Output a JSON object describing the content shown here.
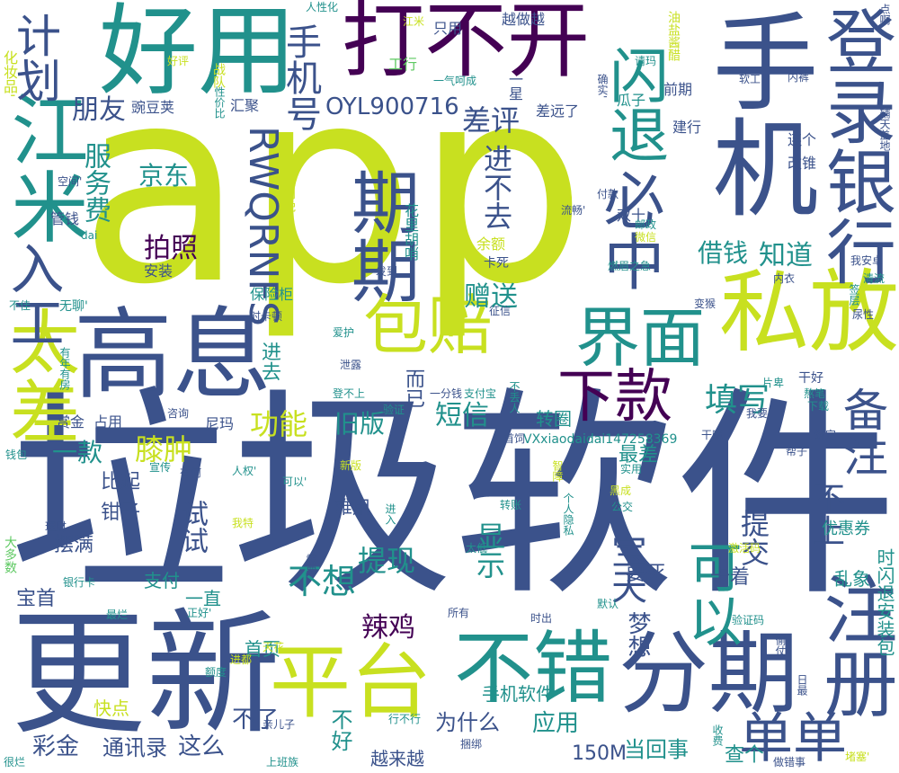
{
  "palette": {
    "deep_purple": "#440154",
    "indigo": "#3b528b",
    "teal": "#21918c",
    "green": "#5ec962",
    "lime": "#c8e020",
    "mid_blue": "#31688e",
    "sea": "#1f9e89"
  },
  "words": [
    {
      "t": "app",
      "c": "lime"
    },
    {
      "t": "垃圾软件",
      "c": "indigo"
    },
    {
      "t": "更新",
      "c": "indigo"
    },
    {
      "t": "打不开",
      "c": "deep_purple"
    },
    {
      "t": "手机",
      "c": "indigo"
    },
    {
      "t": "好用",
      "c": "teal"
    },
    {
      "t": "高息",
      "c": "indigo"
    },
    {
      "t": "私放",
      "c": "lime"
    },
    {
      "t": "平台",
      "c": "lime"
    },
    {
      "t": "不错",
      "c": "teal"
    },
    {
      "t": "分期",
      "c": "indigo"
    },
    {
      "t": "登录银行",
      "c": "indigo"
    },
    {
      "t": "江米",
      "c": "teal"
    },
    {
      "t": "期期",
      "c": "indigo"
    },
    {
      "t": "注册",
      "c": "indigo"
    },
    {
      "t": "包赔",
      "c": "lime"
    },
    {
      "t": "界面",
      "c": "teal"
    },
    {
      "t": "太差",
      "c": "lime"
    },
    {
      "t": "必中",
      "c": "indigo"
    },
    {
      "t": "闪退",
      "c": "teal"
    },
    {
      "t": "下款",
      "c": "deep_purple"
    },
    {
      "t": "入工",
      "c": "indigo"
    },
    {
      "t": "计划",
      "c": "indigo"
    },
    {
      "t": "手机号",
      "c": "indigo"
    },
    {
      "t": "RWQRNFS",
      "c": "indigo"
    },
    {
      "t": "OYL900716",
      "c": "indigo"
    },
    {
      "t": "可以",
      "c": "teal"
    },
    {
      "t": "备注",
      "c": "indigo"
    },
    {
      "t": "单单",
      "c": "indigo"
    },
    {
      "t": "宝天",
      "c": "indigo"
    },
    {
      "t": "填写",
      "c": "teal"
    },
    {
      "t": "功能",
      "c": "lime"
    },
    {
      "t": "旧版",
      "c": "teal"
    },
    {
      "t": "膝肿",
      "c": "lime"
    },
    {
      "t": "短信",
      "c": "teal"
    },
    {
      "t": "朋友",
      "c": "indigo"
    },
    {
      "t": "服务费",
      "c": "teal"
    },
    {
      "t": "差评",
      "c": "indigo"
    },
    {
      "t": "进不去",
      "c": "indigo"
    },
    {
      "t": "京东",
      "c": "teal"
    },
    {
      "t": "拍照",
      "c": "deep_purple"
    },
    {
      "t": "借钱",
      "c": "teal"
    },
    {
      "t": "知道",
      "c": "teal"
    },
    {
      "t": "赠送",
      "c": "teal"
    },
    {
      "t": "不想",
      "c": "teal"
    },
    {
      "t": "辣鸡",
      "c": "deep_purple"
    },
    {
      "t": "提现",
      "c": "teal"
    },
    {
      "t": "显示",
      "c": "teal"
    },
    {
      "t": "试试",
      "c": "indigo"
    },
    {
      "t": "一款",
      "c": "teal"
    },
    {
      "t": "提交",
      "c": "indigo"
    },
    {
      "t": "不上",
      "c": "indigo"
    },
    {
      "t": "梦想",
      "c": "indigo"
    },
    {
      "t": "彩金",
      "c": "indigo"
    },
    {
      "t": "通讯录",
      "c": "indigo"
    },
    {
      "t": "这么",
      "c": "indigo"
    },
    {
      "t": "不了",
      "c": "indigo"
    },
    {
      "t": "为什么",
      "c": "indigo"
    },
    {
      "t": "应用",
      "c": "teal"
    },
    {
      "t": "不好",
      "c": "teal"
    },
    {
      "t": "150M",
      "c": "indigo"
    },
    {
      "t": "当回事",
      "c": "teal"
    },
    {
      "t": "查个",
      "c": "teal"
    },
    {
      "t": "越来越",
      "c": "indigo"
    },
    {
      "t": "首页",
      "c": "teal"
    },
    {
      "t": "手机软件",
      "c": "teal"
    },
    {
      "t": "进去",
      "c": "teal"
    },
    {
      "t": "而已",
      "c": "indigo"
    },
    {
      "t": "转圈",
      "c": "teal"
    },
    {
      "t": "最差",
      "c": "teal"
    },
    {
      "t": "乱象",
      "c": "teal"
    },
    {
      "t": "优惠券",
      "c": "teal"
    },
    {
      "t": "卡着",
      "c": "indigo"
    },
    {
      "t": "要死",
      "c": "indigo"
    },
    {
      "t": "摆满",
      "c": "indigo"
    },
    {
      "t": "比起",
      "c": "indigo"
    },
    {
      "t": "钳子",
      "c": "indigo"
    },
    {
      "t": "难用",
      "c": "indigo"
    },
    {
      "t": "支付",
      "c": "teal"
    },
    {
      "t": "一直",
      "c": "teal"
    },
    {
      "t": "宝首",
      "c": "indigo"
    },
    {
      "t": "快点",
      "c": "lime"
    },
    {
      "t": "时闪退安装包",
      "c": "teal"
    },
    {
      "t": "赏金",
      "c": "indigo"
    },
    {
      "t": "占用",
      "c": "indigo"
    },
    {
      "t": "尼玛",
      "c": "indigo"
    },
    {
      "t": "管钱",
      "c": "indigo"
    },
    {
      "t": "安装",
      "c": "indigo"
    },
    {
      "t": "豌豆荚",
      "c": "indigo"
    },
    {
      "t": "汇聚",
      "c": "indigo"
    },
    {
      "t": "工行",
      "c": "green"
    },
    {
      "t": "越做越",
      "c": "indigo"
    },
    {
      "t": "一星",
      "c": "indigo"
    },
    {
      "t": "只用",
      "c": "indigo"
    },
    {
      "t": "前期",
      "c": "indigo"
    },
    {
      "t": "差远了",
      "c": "indigo"
    },
    {
      "t": "瓜子",
      "c": "teal"
    },
    {
      "t": "建行",
      "c": "indigo"
    },
    {
      "t": "连个",
      "c": "indigo"
    },
    {
      "t": "改锥",
      "c": "indigo"
    },
    {
      "t": "VXxiaodaidai147258369",
      "c": "teal"
    },
    {
      "t": "化妆品'",
      "c": "lime"
    },
    {
      "t": "点啊",
      "c": "indigo"
    },
    {
      "t": "好评",
      "c": "lime"
    },
    {
      "t": "余额",
      "c": "lime"
    },
    {
      "t": "卡死",
      "c": "indigo"
    },
    {
      "t": "一天到晚",
      "c": "lime"
    },
    {
      "t": "保险柜",
      "c": "teal"
    },
    {
      "t": "花里胡哨",
      "c": "teal"
    },
    {
      "t": "双十",
      "c": "indigo"
    },
    {
      "t": "无聊'",
      "c": "teal"
    },
    {
      "t": "时卡顿",
      "c": "indigo"
    },
    {
      "t": "内衣",
      "c": "indigo"
    },
    {
      "t": "燃眉之急",
      "c": "teal"
    },
    {
      "t": "邮政",
      "c": "teal"
    },
    {
      "t": "微信",
      "c": "lime"
    },
    {
      "t": "流畅'",
      "c": "indigo"
    },
    {
      "t": "付款",
      "c": "indigo"
    },
    {
      "t": "发到",
      "c": "indigo"
    },
    {
      "t": "征信",
      "c": "indigo"
    },
    {
      "t": "变猴",
      "c": "indigo"
    },
    {
      "t": "我安卓",
      "c": "indigo"
    },
    {
      "t": "清流",
      "c": "teal"
    },
    {
      "t": "签层",
      "c": "teal"
    },
    {
      "t": "尿性",
      "c": "indigo"
    },
    {
      "t": "泄露",
      "c": "indigo"
    },
    {
      "t": "爱护",
      "c": "teal"
    },
    {
      "t": "一分钱",
      "c": "indigo"
    },
    {
      "t": "支付宝",
      "c": "teal"
    },
    {
      "t": "不丢人",
      "c": "teal"
    },
    {
      "t": "片卑",
      "c": "teal"
    },
    {
      "t": "干好",
      "c": "indigo"
    },
    {
      "t": "熬笔",
      "c": "teal"
    },
    {
      "t": "下载",
      "c": "teal"
    },
    {
      "t": "验证",
      "c": "teal"
    },
    {
      "t": "登不上",
      "c": "teal"
    },
    {
      "t": "咨询",
      "c": "indigo"
    },
    {
      "t": "首饲",
      "c": "indigo"
    },
    {
      "t": "我要",
      "c": "indigo"
    },
    {
      "t": "干嘛",
      "c": "indigo"
    },
    {
      "t": "绑定",
      "c": "indigo"
    },
    {
      "t": "帮子",
      "c": "indigo"
    },
    {
      "t": "钱包",
      "c": "teal"
    },
    {
      "t": "宣传",
      "c": "teal"
    },
    {
      "t": "有何",
      "c": "indigo"
    },
    {
      "t": "人权'",
      "c": "teal"
    },
    {
      "t": "可以'",
      "c": "teal"
    },
    {
      "t": "新版",
      "c": "lime"
    },
    {
      "t": "智障",
      "c": "lime"
    },
    {
      "t": "实用",
      "c": "teal"
    },
    {
      "t": "黑成",
      "c": "lime"
    },
    {
      "t": "公交",
      "c": "teal"
    },
    {
      "t": "理财",
      "c": "indigo"
    },
    {
      "t": "我特",
      "c": "lime"
    },
    {
      "t": "进入",
      "c": "teal"
    },
    {
      "t": "转账",
      "c": "teal"
    },
    {
      "t": "个人隐私",
      "c": "teal"
    },
    {
      "t": "太低",
      "c": "teal"
    },
    {
      "t": "激活码",
      "c": "lime"
    },
    {
      "t": "大多数",
      "c": "green"
    },
    {
      "t": "银行卡",
      "c": "teal"
    },
    {
      "t": "需要",
      "c": "indigo"
    },
    {
      "t": "最烂",
      "c": "teal"
    },
    {
      "t": "正好'",
      "c": "teal"
    },
    {
      "t": "所有",
      "c": "indigo"
    },
    {
      "t": "默认",
      "c": "teal"
    },
    {
      "t": "时出",
      "c": "indigo"
    },
    {
      "t": "验证码",
      "c": "teal"
    },
    {
      "t": "天花",
      "c": "lime"
    },
    {
      "t": "进都",
      "c": "lime"
    },
    {
      "t": "额度",
      "c": "teal"
    },
    {
      "t": "偷仗",
      "c": "indigo"
    },
    {
      "t": "日最",
      "c": "indigo"
    },
    {
      "t": "亲儿子",
      "c": "indigo"
    },
    {
      "t": "行不行",
      "c": "teal"
    },
    {
      "t": "捆绑",
      "c": "indigo"
    },
    {
      "t": "收费",
      "c": "teal"
    },
    {
      "t": "做错事",
      "c": "indigo"
    },
    {
      "t": "堵塞'",
      "c": "lime"
    },
    {
      "t": "上班族",
      "c": "teal"
    },
    {
      "t": "很烂",
      "c": "teal"
    },
    {
      "t": "性价比",
      "c": "teal"
    },
    {
      "t": "战队",
      "c": "lime"
    },
    {
      "t": "不佳",
      "c": "teal"
    },
    {
      "t": "空间'",
      "c": "indigo"
    },
    {
      "t": "dai",
      "c": "teal"
    },
    {
      "t": "人性化",
      "c": "teal"
    },
    {
      "t": "江米",
      "c": "lime"
    },
    {
      "t": "一气呵成",
      "c": "teal"
    },
    {
      "t": "油盐酱醋",
      "c": "lime"
    },
    {
      "t": "确实'",
      "c": "indigo"
    },
    {
      "t": "请玛",
      "c": "teal"
    },
    {
      "t": "软工",
      "c": "indigo"
    },
    {
      "t": "内裤",
      "c": "indigo"
    },
    {
      "t": "辅天盖地",
      "c": "indigo"
    },
    {
      "t": "一条",
      "c": "lime"
    },
    {
      "t": "有年有房",
      "c": "teal"
    }
  ]
}
